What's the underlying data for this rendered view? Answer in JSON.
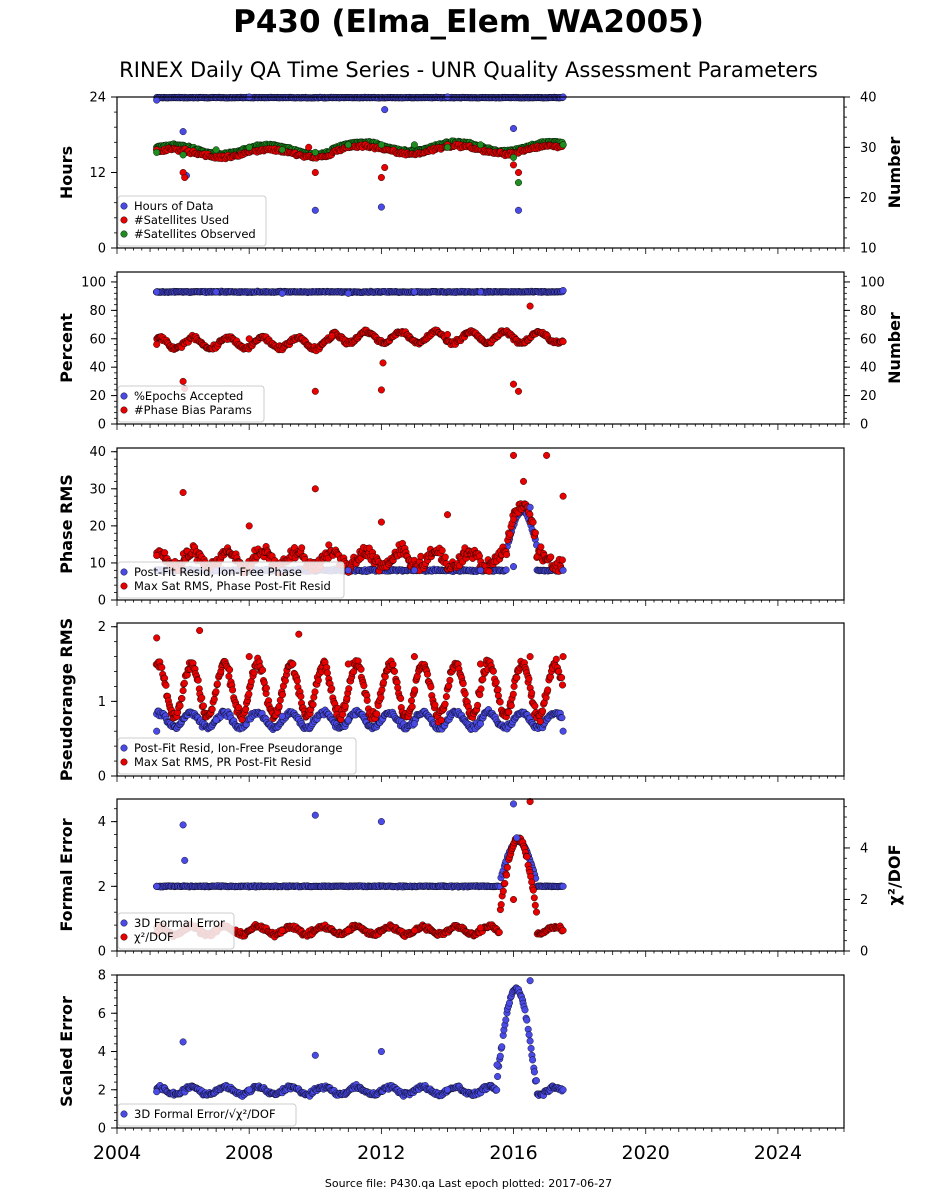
{
  "title": "P430 (Elma_Elem_WA2005)",
  "subtitle": "RINEX Daily QA Time Series - UNR Quality Assessment Parameters",
  "footer": "Source file: P430.qa Last epoch plotted: 2017-06-27",
  "colors": {
    "blue": "#4a4ae6",
    "red": "#e60000",
    "green": "#1e8c1e"
  },
  "chart_data": [
    {
      "type": "scatter",
      "ylabel": "Hours",
      "ylabel_right": "Number",
      "ylim": [
        0,
        24
      ],
      "yticks": [
        0,
        12,
        24
      ],
      "ylim_right": [
        10,
        40
      ],
      "yticks_right": [
        10,
        20,
        30,
        40
      ],
      "legend_position": "lower-left",
      "series": [
        {
          "name": "Hours of Data",
          "color": "blue",
          "axis": "left",
          "key": "hours_of_data",
          "x": [
            2005.2,
            2006.0,
            2006.1,
            2008.0,
            2010.0,
            2012.0,
            2012.1,
            2014.0,
            2016.0,
            2016.15,
            2017.5
          ],
          "y": [
            23.5,
            18.5,
            11.5,
            24.0,
            6.0,
            6.5,
            22.0,
            24.0,
            19.0,
            6.0,
            24.0
          ]
        },
        {
          "name": "#Satellites Used",
          "color": "red",
          "axis": "right",
          "key": "sat_used",
          "x": [
            2005.2,
            2006.0,
            2006.05,
            2008.0,
            2009.8,
            2010.0,
            2012.0,
            2012.1,
            2014.0,
            2016.0,
            2016.15,
            2017.5
          ],
          "y": [
            29.5,
            25.0,
            24.0,
            30.0,
            30.0,
            25.0,
            24.0,
            26.0,
            30.5,
            26.5,
            25.0,
            30.5
          ]
        },
        {
          "name": "#Satellites Observed",
          "color": "green",
          "axis": "right",
          "key": "sat_observed",
          "x": [
            2005.2,
            2006.0,
            2007.0,
            2008.0,
            2009.0,
            2010.0,
            2011.0,
            2012.0,
            2013.0,
            2014.0,
            2015.0,
            2016.0,
            2016.15,
            2017.5
          ],
          "y": [
            29.0,
            28.5,
            29.5,
            30.0,
            29.5,
            29.0,
            30.5,
            30.5,
            30.5,
            30.0,
            30.5,
            28.0,
            23.0,
            30.5
          ]
        }
      ]
    },
    {
      "type": "scatter",
      "ylabel": "Percent",
      "ylabel_right": "Number",
      "ylim": [
        0,
        107
      ],
      "yticks": [
        0,
        20,
        40,
        60,
        80,
        100
      ],
      "ylim_right": [
        0,
        107
      ],
      "yticks_right": [
        0,
        20,
        40,
        60,
        80,
        100
      ],
      "legend_position": "lower-left",
      "series": [
        {
          "name": "%Epochs Accepted",
          "color": "blue",
          "axis": "left",
          "key": "epochs_accepted",
          "x": [
            2005.2,
            2007.0,
            2009.0,
            2011.0,
            2013.0,
            2015.0,
            2017.5
          ],
          "y": [
            93,
            93,
            92,
            92,
            93,
            93,
            94
          ]
        },
        {
          "name": "#Phase Bias Params",
          "color": "red",
          "axis": "right",
          "key": "phase_bias",
          "x": [
            2005.2,
            2006.0,
            2006.05,
            2008.0,
            2010.0,
            2010.5,
            2012.0,
            2012.05,
            2014.0,
            2016.0,
            2016.15,
            2016.5,
            2017.5
          ],
          "y": [
            56,
            30,
            25,
            60,
            23,
            62,
            24,
            43,
            63,
            28,
            23,
            83,
            58
          ]
        }
      ]
    },
    {
      "type": "scatter",
      "ylabel": "Phase RMS",
      "ylim": [
        0,
        41
      ],
      "yticks": [
        0,
        10,
        20,
        30,
        40
      ],
      "legend_position": "lower-left",
      "series": [
        {
          "name": "Post-Fit Resid, Ion-Free Phase",
          "color": "blue",
          "axis": "left",
          "key": "phase_rms",
          "x": [
            2005.2,
            2007.0,
            2009.0,
            2011.0,
            2013.0,
            2015.0,
            2016.0,
            2016.5,
            2017.5
          ],
          "y": [
            8,
            8,
            8,
            8,
            8,
            8,
            9,
            25,
            8
          ]
        },
        {
          "name": "Max Sat RMS, Phase Post-Fit Resid",
          "color": "red",
          "axis": "left",
          "key": "phase_max",
          "x": [
            2005.2,
            2006.0,
            2008.0,
            2010.0,
            2012.0,
            2014.0,
            2016.0,
            2016.3,
            2017.0,
            2017.5
          ],
          "y": [
            12,
            29,
            20,
            30,
            21,
            23,
            39,
            32,
            39,
            28
          ]
        }
      ]
    },
    {
      "type": "scatter",
      "ylabel": "Pseudorange RMS",
      "ylim": [
        0,
        2.05
      ],
      "yticks": [
        0,
        1,
        2
      ],
      "legend_position": "lower-left",
      "series": [
        {
          "name": "Post-Fit Resid, Ion-Free Pseudorange",
          "color": "blue",
          "axis": "left",
          "key": "pr_rms",
          "x": [
            2005.2,
            2007.0,
            2009.0,
            2011.0,
            2013.0,
            2015.0,
            2017.5
          ],
          "y": [
            0.6,
            0.75,
            0.8,
            0.75,
            0.7,
            0.7,
            0.6
          ]
        },
        {
          "name": "Max Sat RMS, PR Post-Fit Resid",
          "color": "red",
          "axis": "left",
          "key": "pr_max",
          "x": [
            2005.2,
            2006.5,
            2008.0,
            2009.5,
            2011.0,
            2013.0,
            2015.0,
            2016.5,
            2017.5
          ],
          "y": [
            1.85,
            1.95,
            1.6,
            1.9,
            1.5,
            1.6,
            1.5,
            1.6,
            1.6
          ]
        }
      ]
    },
    {
      "type": "scatter",
      "ylabel": "Formal Error",
      "ylabel_right": "χ²/DOF",
      "ylim": [
        0,
        4.7
      ],
      "yticks": [
        0,
        2,
        4
      ],
      "ylim_right": [
        0,
        5.9
      ],
      "yticks_right": [
        0,
        2,
        4
      ],
      "legend_position": "lower-left",
      "series": [
        {
          "name": "3D Formal Error",
          "color": "blue",
          "axis": "left",
          "key": "formal_err",
          "x": [
            2005.2,
            2006.0,
            2006.05,
            2010.0,
            2012.0,
            2016.0,
            2016.1,
            2017.5
          ],
          "y": [
            2.0,
            3.9,
            2.8,
            4.2,
            4.0,
            4.55,
            3.5,
            2.0
          ]
        },
        {
          "name": "χ²/DOF",
          "color": "red",
          "axis": "right",
          "key": "chi2",
          "x": [
            2005.2,
            2007.0,
            2009.0,
            2011.0,
            2013.0,
            2015.0,
            2016.0,
            2016.5,
            2017.5
          ],
          "y": [
            0.7,
            0.8,
            0.8,
            0.8,
            0.8,
            0.9,
            2.0,
            5.8,
            0.8
          ]
        }
      ]
    },
    {
      "type": "scatter",
      "ylabel": "Scaled Error",
      "ylim": [
        0,
        8
      ],
      "yticks": [
        0,
        2,
        4,
        6,
        8
      ],
      "legend_position": "lower-left",
      "series": [
        {
          "name": "3D Formal Error/√χ²/DOF",
          "color": "blue",
          "axis": "left",
          "key": "scaled_err",
          "x": [
            2005.2,
            2006.0,
            2008.0,
            2010.0,
            2012.0,
            2014.0,
            2015.5,
            2016.5,
            2017.5
          ],
          "y": [
            1.9,
            4.5,
            2.0,
            3.8,
            4.0,
            2.0,
            3.3,
            7.7,
            2.0
          ]
        }
      ]
    }
  ],
  "x_axis": {
    "min": 2004,
    "max": 2026,
    "ticks": [
      2004,
      2008,
      2012,
      2016,
      2020,
      2024
    ]
  }
}
